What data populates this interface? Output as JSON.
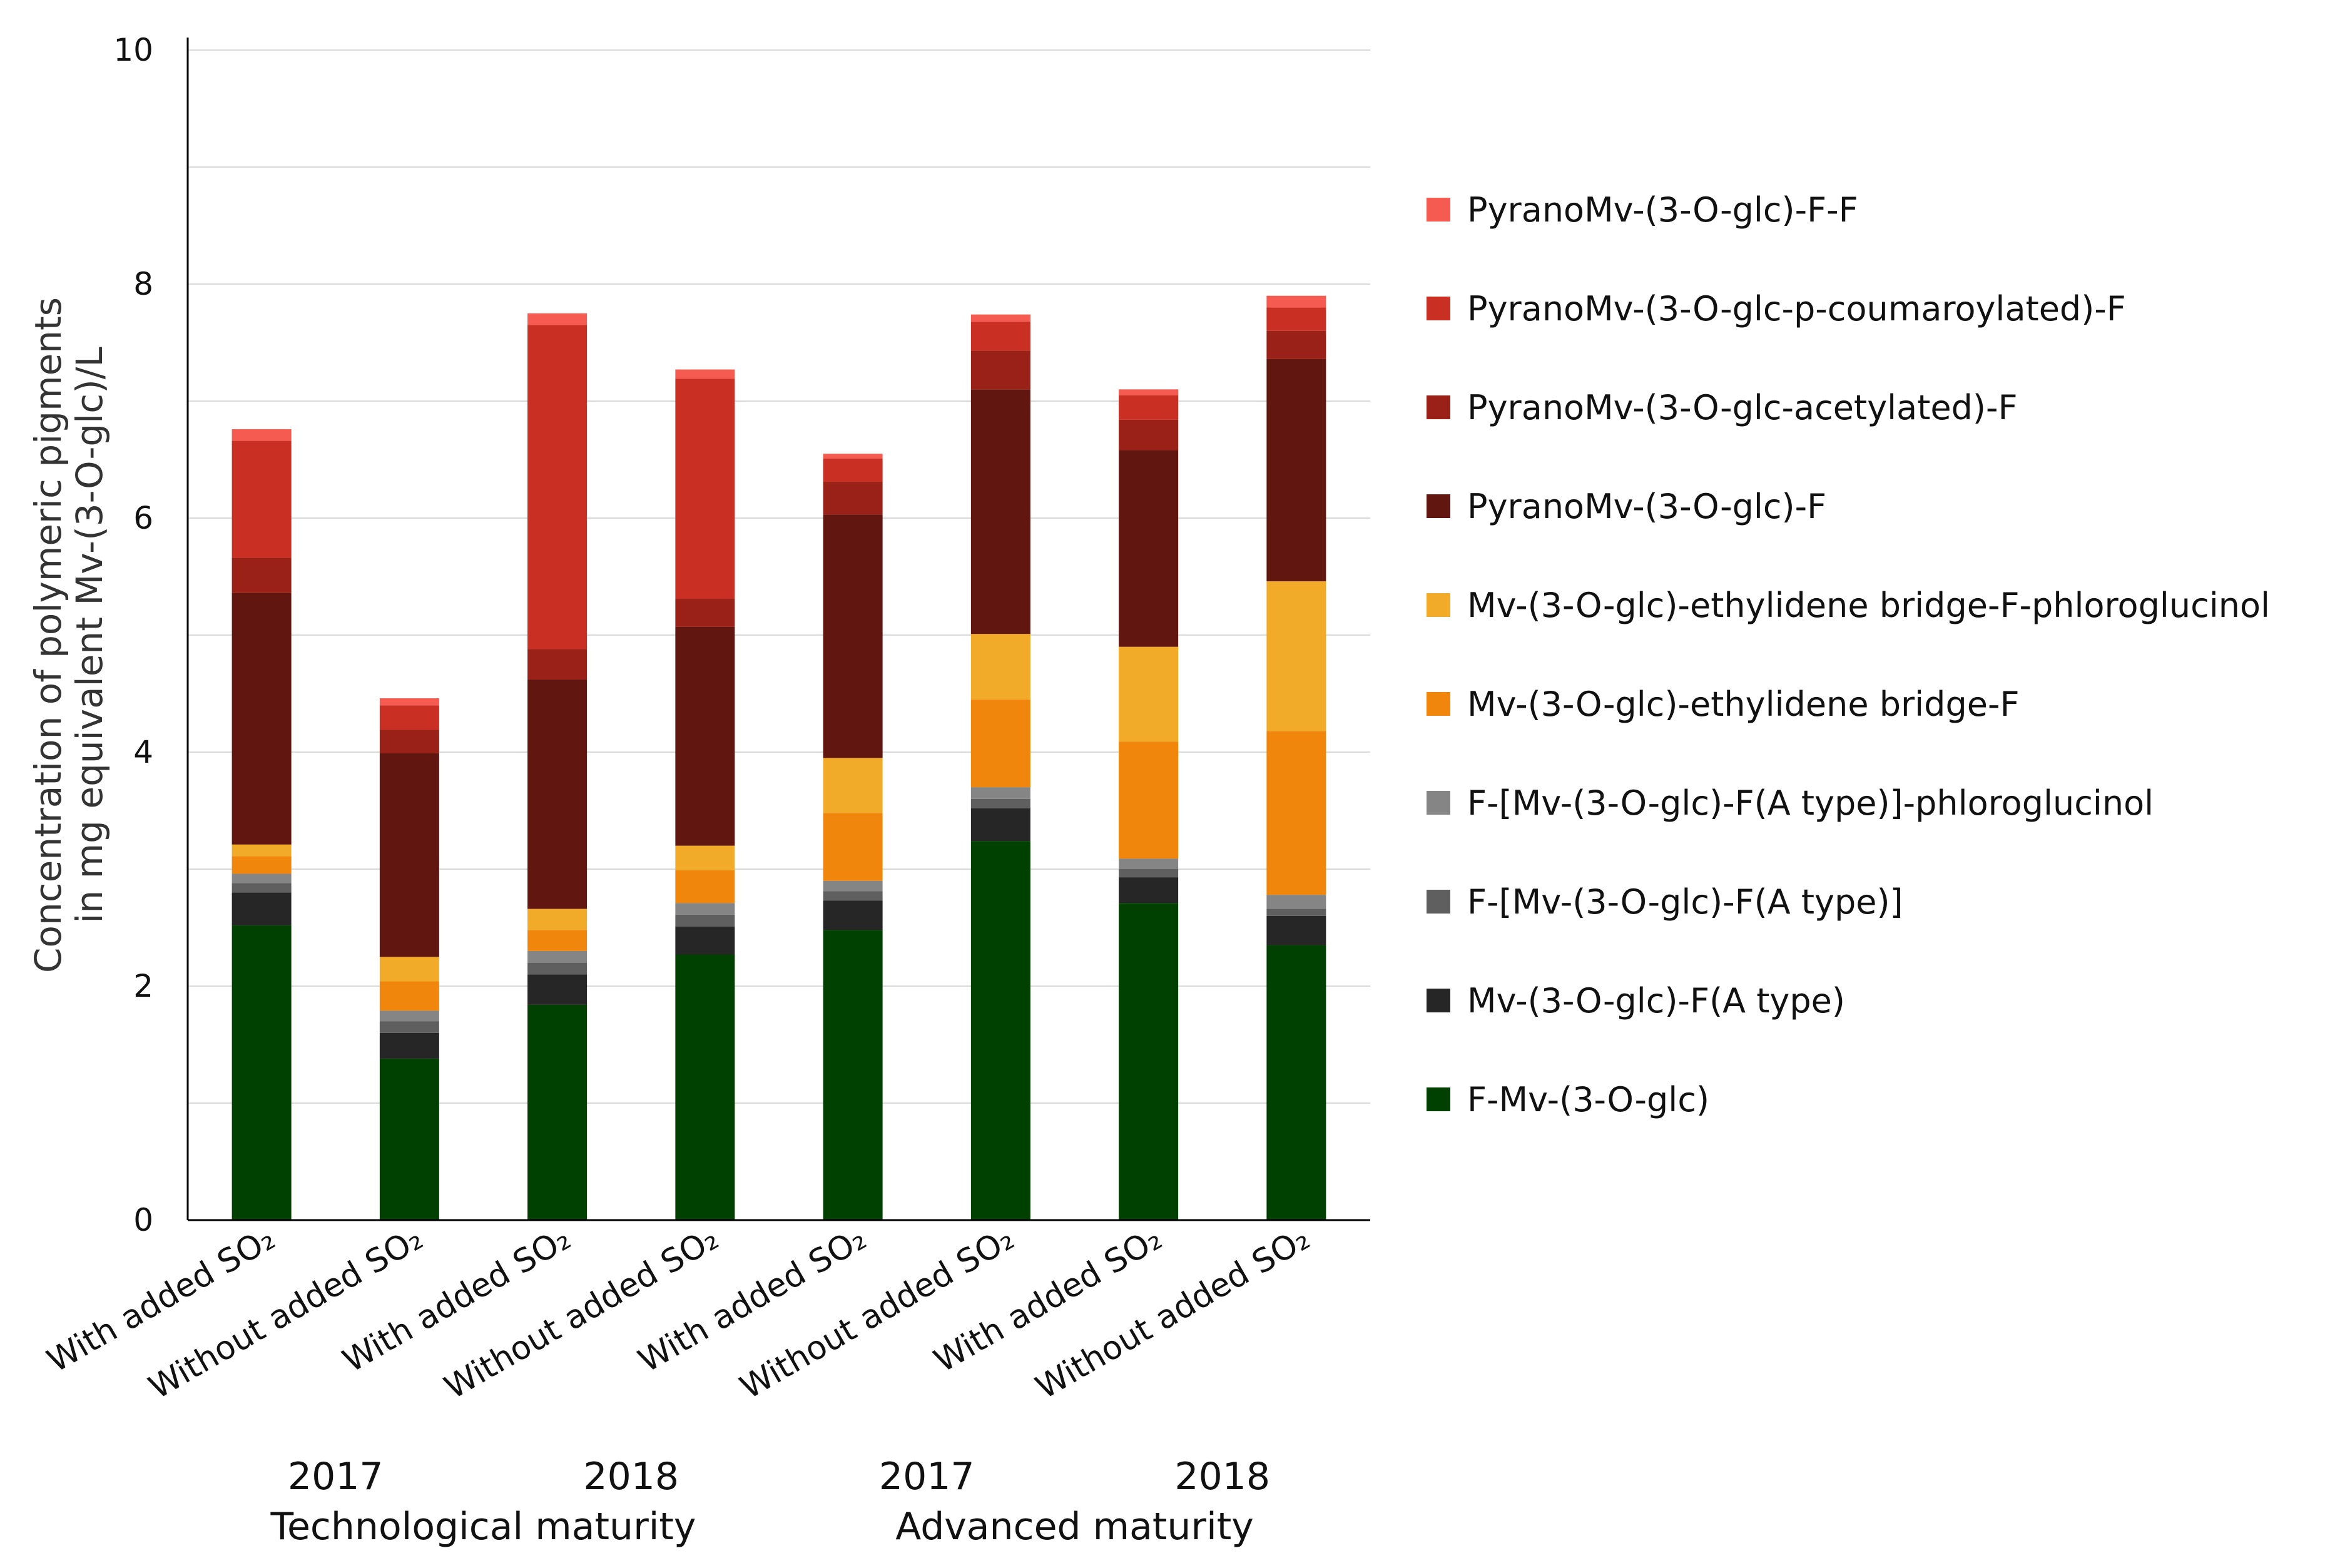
{
  "chart_data": {
    "type": "bar",
    "stacked": true,
    "ylabel_lines": [
      "Concentration of polymeric pigments",
      "in mg equivalent Mv-(3-O-glc)/L"
    ],
    "ylim": [
      0,
      10
    ],
    "yticks": [
      0,
      2,
      4,
      6,
      8,
      10
    ],
    "grid": true,
    "legend_position": "right",
    "categories": [
      "With added SO₂",
      "Without added SO₂",
      "With added SO₂",
      "Without added SO₂",
      "With added SO₂",
      "Without added SO₂",
      "With added SO₂",
      "Without added SO₂"
    ],
    "groups": [
      {
        "year": "2017",
        "span": [
          0,
          1
        ]
      },
      {
        "year": "2018",
        "span": [
          2,
          3
        ]
      },
      {
        "year": "2017",
        "span": [
          4,
          5
        ]
      },
      {
        "year": "2018",
        "span": [
          6,
          7
        ]
      }
    ],
    "maturity_labels": [
      {
        "label": "Technological maturity",
        "span": [
          0,
          3
        ]
      },
      {
        "label": "Advanced maturity",
        "span": [
          4,
          7
        ]
      }
    ],
    "series": [
      {
        "name": "F-Mv-(3-O-glc)",
        "color": "#004000",
        "values": [
          2.52,
          1.38,
          1.84,
          2.27,
          2.48,
          3.24,
          2.71,
          2.35
        ]
      },
      {
        "name": "Mv-(3-O-glc)-F(A type)",
        "color": "#262626",
        "values": [
          0.28,
          0.22,
          0.26,
          0.24,
          0.25,
          0.28,
          0.22,
          0.25
        ]
      },
      {
        "name": "F-[Mv-(3-O-glc)-F(A type)]",
        "color": "#5f5f5f",
        "values": [
          0.08,
          0.1,
          0.1,
          0.1,
          0.08,
          0.08,
          0.07,
          0.06
        ]
      },
      {
        "name": "F-[Mv-(3-O-glc)-F(A type)]-phloroglucinol",
        "color": "#858585",
        "values": [
          0.08,
          0.09,
          0.1,
          0.1,
          0.09,
          0.1,
          0.09,
          0.12
        ]
      },
      {
        "name": "Mv-(3-O-glc)-ethylidene bridge-F",
        "color": "#f0860b",
        "values": [
          0.15,
          0.25,
          0.18,
          0.28,
          0.58,
          0.75,
          1.0,
          1.4
        ]
      },
      {
        "name": "Mv-(3-O-glc)-ethylidene bridge-F-phloroglucinol",
        "color": "#f2ab28",
        "values": [
          0.1,
          0.21,
          0.18,
          0.21,
          0.47,
          0.56,
          0.81,
          1.28
        ]
      },
      {
        "name": "PyranoMv-(3-O-glc)-F",
        "color": "#621610",
        "values": [
          2.15,
          1.74,
          1.96,
          1.87,
          2.08,
          2.09,
          1.68,
          1.9
        ]
      },
      {
        "name": "PyranoMv-(3-O-glc-acetylated)-F",
        "color": "#9a2117",
        "values": [
          0.3,
          0.2,
          0.26,
          0.24,
          0.28,
          0.33,
          0.26,
          0.24
        ]
      },
      {
        "name": "PyranoMv-(3-O-glc-p-coumaroylated)-F",
        "color": "#c92f23",
        "values": [
          1.0,
          0.21,
          2.77,
          1.88,
          0.2,
          0.25,
          0.21,
          0.2
        ]
      },
      {
        "name": "PyranoMv-(3-O-glc)-F-F",
        "color": "#f55b50",
        "values": [
          0.1,
          0.06,
          0.1,
          0.08,
          0.04,
          0.06,
          0.05,
          0.1
        ]
      }
    ]
  }
}
